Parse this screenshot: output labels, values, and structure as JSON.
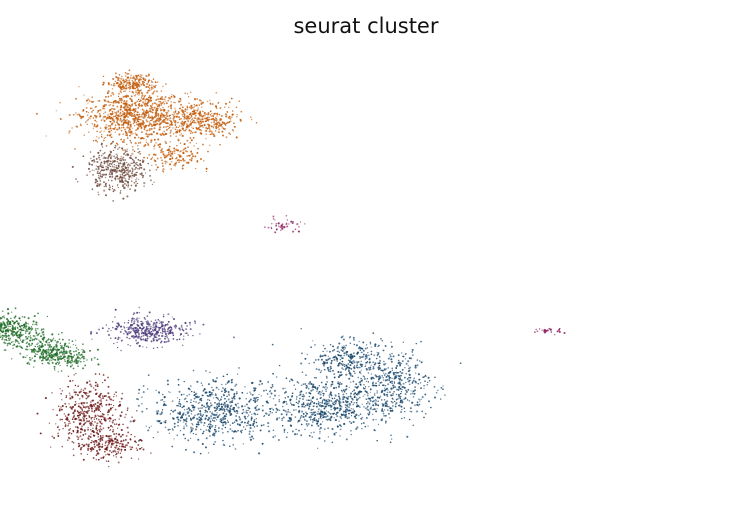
{
  "chart_data": {
    "type": "scatter",
    "title": "seurat cluster",
    "xlabel": "",
    "ylabel": "",
    "grid": false,
    "axes_visible": false,
    "legend": "none",
    "xlim": [
      -11,
      16
    ],
    "ylim": [
      -9,
      11
    ],
    "series": [
      {
        "color": "#c25b0a",
        "blobs": [
          [
            -7.2,
            8.4,
            1.9,
            1.1,
            850
          ],
          [
            -4.5,
            8.2,
            1.5,
            0.8,
            400
          ],
          [
            -7.2,
            9.9,
            0.9,
            0.4,
            200
          ],
          [
            -5.5,
            6.5,
            1.0,
            0.6,
            150
          ]
        ]
      },
      {
        "color": "#6e4a3c",
        "blobs": [
          [
            -7.8,
            5.9,
            1.1,
            0.9,
            420
          ]
        ]
      },
      {
        "color": "#17466a",
        "blobs": [
          [
            -3.9,
            -5.3,
            2.3,
            1.3,
            650
          ],
          [
            0.6,
            -5.1,
            2.2,
            1.2,
            600
          ],
          [
            3.3,
            -4.1,
            1.6,
            1.5,
            450
          ],
          [
            1.5,
            -2.9,
            1.4,
            0.8,
            250
          ]
        ]
      },
      {
        "color": "#6b1616",
        "blobs": [
          [
            -9.0,
            -5.6,
            1.3,
            1.5,
            500
          ],
          [
            -8.0,
            -7.0,
            1.0,
            0.5,
            150
          ]
        ]
      },
      {
        "color": "#1e6b26",
        "blobs": [
          [
            -12.2,
            -1.6,
            1.1,
            0.7,
            380
          ],
          [
            -10.6,
            -2.5,
            1.0,
            0.6,
            250
          ],
          [
            -9.8,
            -2.9,
            0.8,
            0.4,
            120
          ]
        ]
      },
      {
        "color": "#4c3a7a",
        "blobs": [
          [
            -6.6,
            -1.6,
            1.5,
            0.6,
            380
          ]
        ]
      },
      {
        "color": "#8c2060",
        "blobs": [
          [
            -1.0,
            3.3,
            0.8,
            0.3,
            40
          ],
          [
            9.7,
            -1.6,
            0.6,
            0.15,
            25
          ]
        ]
      }
    ]
  }
}
